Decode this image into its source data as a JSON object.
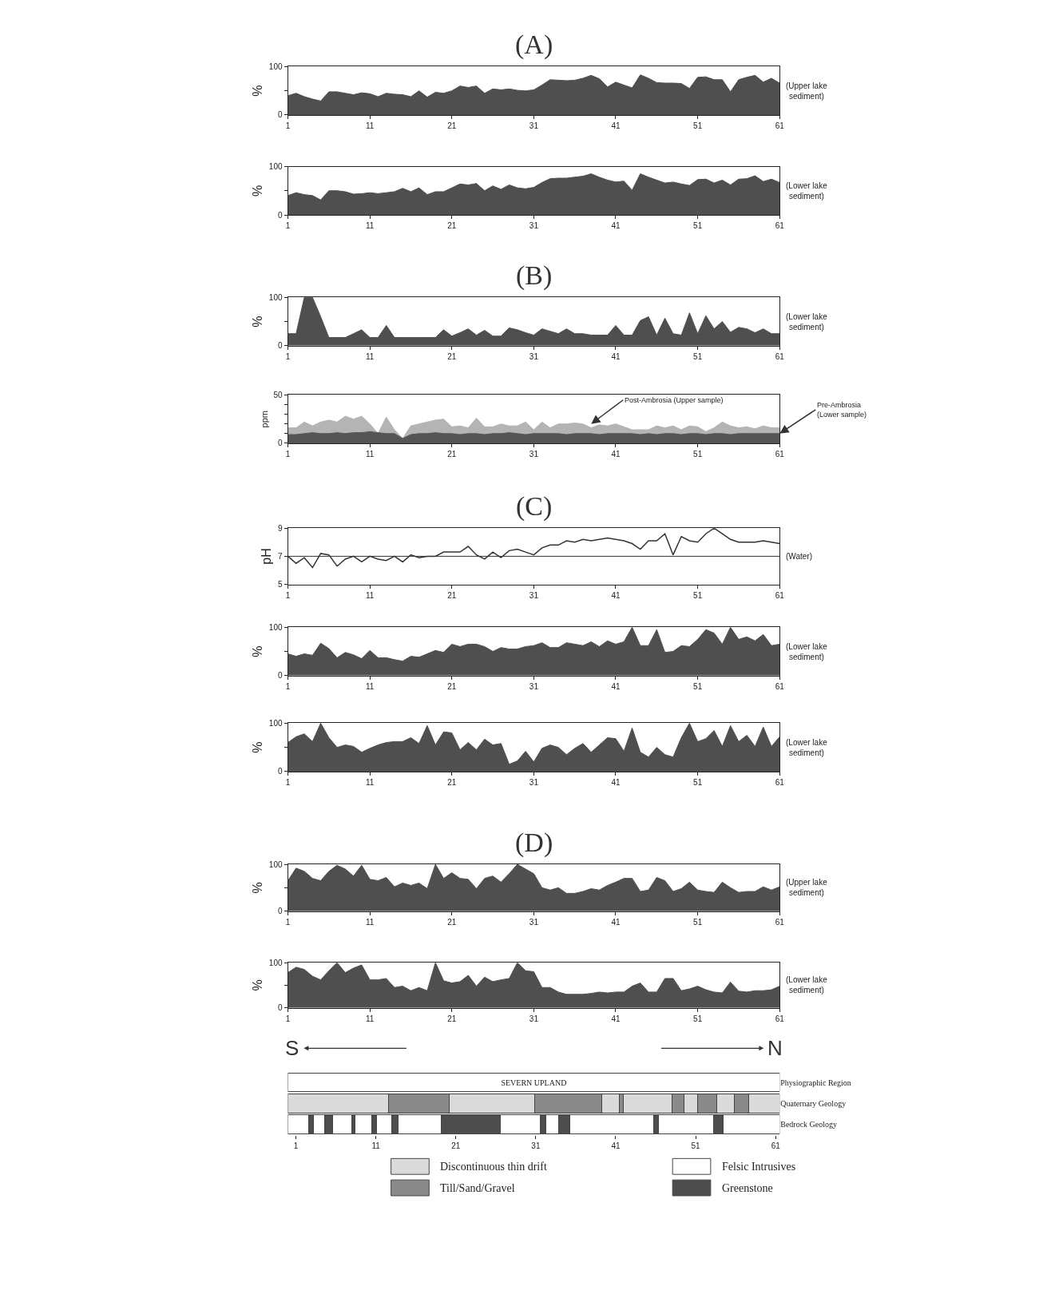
{
  "chart_data": [
    {
      "type": "area",
      "title": "(A)",
      "ylabel": "%",
      "xlim": [
        1,
        61
      ],
      "ylim": [
        0,
        100
      ],
      "xticks": [
        1,
        11,
        21,
        31,
        41,
        51,
        61
      ],
      "yticks": [
        0,
        {
          "value": 50,
          "label": null
        },
        100
      ],
      "grid": false,
      "x": [
        1,
        2,
        3,
        4,
        5,
        6,
        7,
        8,
        9,
        10,
        11,
        12,
        13,
        14,
        15,
        16,
        17,
        18,
        19,
        20,
        21,
        22,
        23,
        24,
        25,
        26,
        27,
        28,
        29,
        30,
        31,
        32,
        33,
        34,
        35,
        36,
        37,
        38,
        39,
        40,
        41,
        42,
        43,
        44,
        45,
        46,
        47,
        48,
        49,
        50,
        51,
        52,
        53,
        54,
        55,
        56,
        57,
        58,
        59,
        60,
        61
      ],
      "series": [
        {
          "name": "(Upper lake sediment)",
          "color": "#4f4f4f",
          "values": [
            40,
            45,
            38,
            33,
            29,
            48,
            48,
            45,
            42,
            46,
            44,
            38,
            45,
            43,
            42,
            38,
            50,
            37,
            47,
            45,
            50,
            60,
            57,
            60,
            45,
            54,
            52,
            54,
            51,
            50,
            52,
            62,
            73,
            72,
            71,
            72,
            76,
            82,
            75,
            58,
            68,
            62,
            56,
            83,
            76,
            67,
            66,
            66,
            65,
            55,
            78,
            79,
            73,
            73,
            48,
            73,
            78,
            82,
            68,
            76,
            66
          ]
        }
      ]
    },
    {
      "type": "area",
      "ylabel": "%",
      "xlim": [
        1,
        61
      ],
      "ylim": [
        0,
        100
      ],
      "xticks": [
        1,
        11,
        21,
        31,
        41,
        51,
        61
      ],
      "yticks": [
        0,
        {
          "value": 50,
          "label": null
        },
        100
      ],
      "grid": false,
      "x": [
        1,
        2,
        3,
        4,
        5,
        6,
        7,
        8,
        9,
        10,
        11,
        12,
        13,
        14,
        15,
        16,
        17,
        18,
        19,
        20,
        21,
        22,
        23,
        24,
        25,
        26,
        27,
        28,
        29,
        30,
        31,
        32,
        33,
        34,
        35,
        36,
        37,
        38,
        39,
        40,
        41,
        42,
        43,
        44,
        45,
        46,
        47,
        48,
        49,
        50,
        51,
        52,
        53,
        54,
        55,
        56,
        57,
        58,
        59,
        60,
        61
      ],
      "series": [
        {
          "name": "(Lower lake sediment)",
          "color": "#4f4f4f",
          "values": [
            40,
            46,
            42,
            40,
            31,
            50,
            50,
            48,
            43,
            44,
            46,
            44,
            46,
            48,
            55,
            48,
            56,
            42,
            48,
            48,
            56,
            64,
            62,
            65,
            50,
            60,
            53,
            62,
            56,
            54,
            57,
            67,
            75,
            76,
            76,
            78,
            80,
            85,
            78,
            72,
            68,
            70,
            51,
            85,
            78,
            72,
            66,
            68,
            64,
            61,
            73,
            74,
            66,
            72,
            62,
            74,
            75,
            81,
            69,
            74,
            67
          ]
        }
      ]
    },
    {
      "type": "area",
      "title": "(B)",
      "ylabel": "%",
      "xlim": [
        1,
        61
      ],
      "ylim": [
        0,
        100
      ],
      "xticks": [
        1,
        11,
        21,
        31,
        41,
        51,
        61
      ],
      "yticks": [
        0,
        {
          "value": 50,
          "label": null
        },
        100
      ],
      "grid": false,
      "x": [
        1,
        2,
        3,
        4,
        5,
        6,
        7,
        8,
        9,
        10,
        11,
        12,
        13,
        14,
        15,
        16,
        17,
        18,
        19,
        20,
        21,
        22,
        23,
        24,
        25,
        26,
        27,
        28,
        29,
        30,
        31,
        32,
        33,
        34,
        35,
        36,
        37,
        38,
        39,
        40,
        41,
        42,
        43,
        44,
        45,
        46,
        47,
        48,
        49,
        50,
        51,
        52,
        53,
        54,
        55,
        56,
        57,
        58,
        59,
        60,
        61
      ],
      "series": [
        {
          "name": "(Lower lake sediment)",
          "color": "#4f4f4f",
          "values": [
            25,
            25,
            100,
            100,
            60,
            17,
            17,
            17,
            25,
            33,
            17,
            17,
            42,
            17,
            17,
            17,
            17,
            17,
            17,
            33,
            20,
            27,
            35,
            22,
            32,
            20,
            20,
            37,
            33,
            27,
            22,
            35,
            30,
            25,
            35,
            25,
            25,
            22,
            22,
            22,
            42,
            22,
            22,
            52,
            60,
            22,
            57,
            25,
            22,
            68,
            25,
            62,
            35,
            50,
            28,
            38,
            35,
            27,
            35,
            25,
            25
          ]
        }
      ]
    },
    {
      "type": "area",
      "ylabel": "ppm",
      "xlim": [
        1,
        61
      ],
      "ylim": [
        0,
        50
      ],
      "xticks": [
        1,
        11,
        21,
        31,
        41,
        51,
        61
      ],
      "yticks": [
        0,
        {
          "value": 10,
          "label": null
        },
        {
          "value": 20,
          "label": null
        },
        {
          "value": 30,
          "label": null
        },
        {
          "value": 40,
          "label": null
        },
        50
      ],
      "grid": false,
      "x": [
        1,
        2,
        3,
        4,
        5,
        6,
        7,
        8,
        9,
        10,
        11,
        12,
        13,
        14,
        15,
        16,
        17,
        18,
        19,
        20,
        21,
        22,
        23,
        24,
        25,
        26,
        27,
        28,
        29,
        30,
        31,
        32,
        33,
        34,
        35,
        36,
        37,
        38,
        39,
        40,
        41,
        42,
        43,
        44,
        45,
        46,
        47,
        48,
        49,
        50,
        51,
        52,
        53,
        54,
        55,
        56,
        57,
        58,
        59,
        60,
        61
      ],
      "series": [
        {
          "color": "#b4b4b4",
          "values": [
            16,
            16,
            22,
            18,
            22,
            24,
            22,
            28,
            25,
            28,
            20,
            10,
            27,
            14,
            5,
            18,
            20,
            22,
            24,
            25,
            17,
            18,
            16,
            26,
            17,
            17,
            20,
            18,
            18,
            22,
            14,
            22,
            16,
            20,
            20,
            21,
            20,
            16,
            19,
            18,
            20,
            17,
            14,
            14,
            14,
            18,
            16,
            18,
            14,
            18,
            17,
            12,
            16,
            22,
            18,
            16,
            17,
            15,
            18,
            16,
            16
          ]
        },
        {
          "color": "#555555",
          "values": [
            9,
            9,
            10,
            11,
            10,
            10,
            11,
            10,
            11,
            11,
            12,
            11,
            10,
            10,
            5,
            9,
            10,
            10,
            11,
            10,
            10,
            9,
            10,
            10,
            9,
            10,
            10,
            11,
            10,
            9,
            10,
            10,
            10,
            10,
            9,
            10,
            10,
            10,
            9,
            10,
            10,
            10,
            10,
            9,
            10,
            9,
            10,
            10,
            9,
            10,
            10,
            9,
            10,
            10,
            9,
            10,
            10,
            10,
            10,
            10,
            10
          ]
        }
      ],
      "annotations": [
        {
          "text": "Post-Ambrosia (Upper sample)",
          "x": 38,
          "y": 20
        },
        {
          "text": "Pre-Ambrosia (Lower sample)",
          "x": 61,
          "y": 10
        }
      ]
    },
    {
      "type": "line",
      "title": "(C)",
      "ylabel": "pH",
      "xlim": [
        1,
        61
      ],
      "ylim": [
        5,
        9
      ],
      "xticks": [
        1,
        11,
        21,
        31,
        41,
        51,
        61
      ],
      "yticks": [
        5,
        7,
        9
      ],
      "grid": false,
      "marker": "none",
      "line_style": "solid",
      "x": [
        1,
        2,
        3,
        4,
        5,
        6,
        7,
        8,
        9,
        10,
        11,
        12,
        13,
        14,
        15,
        16,
        17,
        18,
        19,
        20,
        21,
        22,
        23,
        24,
        25,
        26,
        27,
        28,
        29,
        30,
        31,
        32,
        33,
        34,
        35,
        36,
        37,
        38,
        39,
        40,
        41,
        42,
        43,
        44,
        45,
        46,
        47,
        48,
        49,
        50,
        51,
        52,
        53,
        54,
        55,
        56,
        57,
        58,
        59,
        60,
        61
      ],
      "series": [
        {
          "name": "(Water)",
          "color": "#333333",
          "values": [
            7.0,
            6.5,
            6.9,
            6.2,
            7.2,
            7.1,
            6.3,
            6.8,
            7.0,
            6.6,
            7.0,
            6.8,
            6.7,
            7.0,
            6.6,
            7.1,
            6.9,
            7.0,
            7.0,
            7.3,
            7.3,
            7.3,
            7.7,
            7.1,
            6.8,
            7.3,
            6.9,
            7.4,
            7.5,
            7.3,
            7.1,
            7.6,
            7.8,
            7.8,
            8.1,
            8.0,
            8.2,
            8.1,
            8.2,
            8.3,
            8.2,
            8.1,
            7.9,
            7.5,
            8.1,
            8.1,
            8.6,
            7.1,
            8.4,
            8.1,
            8.0,
            8.6,
            9.0,
            8.6,
            8.2,
            8.0,
            8.0,
            8.0,
            8.1,
            8.0,
            7.9
          ]
        }
      ],
      "ref_lines": [
        {
          "axis": "y",
          "value": 7,
          "color": "#333333"
        }
      ]
    },
    {
      "type": "area",
      "ylabel": "%",
      "xlim": [
        1,
        61
      ],
      "ylim": [
        0,
        100
      ],
      "xticks": [
        1,
        11,
        21,
        31,
        41,
        51,
        61
      ],
      "yticks": [
        0,
        {
          "value": 50,
          "label": null
        },
        100
      ],
      "grid": false,
      "x": [
        1,
        2,
        3,
        4,
        5,
        6,
        7,
        8,
        9,
        10,
        11,
        12,
        13,
        14,
        15,
        16,
        17,
        18,
        19,
        20,
        21,
        22,
        23,
        24,
        25,
        26,
        27,
        28,
        29,
        30,
        31,
        32,
        33,
        34,
        35,
        36,
        37,
        38,
        39,
        40,
        41,
        42,
        43,
        44,
        45,
        46,
        47,
        48,
        49,
        50,
        51,
        52,
        53,
        54,
        55,
        56,
        57,
        58,
        59,
        60,
        61
      ],
      "series": [
        {
          "name": "(Lower lake sediment)",
          "color": "#4f4f4f",
          "values": [
            45,
            40,
            45,
            42,
            67,
            56,
            37,
            48,
            43,
            35,
            52,
            37,
            37,
            33,
            30,
            40,
            38,
            45,
            52,
            48,
            65,
            60,
            65,
            65,
            60,
            50,
            58,
            55,
            55,
            60,
            62,
            68,
            58,
            58,
            68,
            65,
            62,
            70,
            60,
            72,
            65,
            70,
            100,
            62,
            62,
            95,
            48,
            50,
            62,
            60,
            75,
            95,
            88,
            65,
            100,
            75,
            80,
            72,
            85,
            62,
            65
          ]
        }
      ]
    },
    {
      "type": "area",
      "ylabel": "%",
      "xlim": [
        1,
        61
      ],
      "ylim": [
        0,
        100
      ],
      "xticks": [
        1,
        11,
        21,
        31,
        41,
        51,
        61
      ],
      "yticks": [
        0,
        {
          "value": 50,
          "label": null
        },
        100
      ],
      "grid": false,
      "x": [
        1,
        2,
        3,
        4,
        5,
        6,
        7,
        8,
        9,
        10,
        11,
        12,
        13,
        14,
        15,
        16,
        17,
        18,
        19,
        20,
        21,
        22,
        23,
        24,
        25,
        26,
        27,
        28,
        29,
        30,
        31,
        32,
        33,
        34,
        35,
        36,
        37,
        38,
        39,
        40,
        41,
        42,
        43,
        44,
        45,
        46,
        47,
        48,
        49,
        50,
        51,
        52,
        53,
        54,
        55,
        56,
        57,
        58,
        59,
        60,
        61
      ],
      "series": [
        {
          "name": "(Lower lake sediment)",
          "color": "#4f4f4f",
          "values": [
            60,
            72,
            78,
            62,
            100,
            70,
            50,
            55,
            52,
            40,
            48,
            55,
            60,
            62,
            62,
            70,
            58,
            95,
            55,
            82,
            80,
            45,
            60,
            45,
            67,
            55,
            58,
            15,
            22,
            42,
            20,
            48,
            55,
            50,
            35,
            48,
            58,
            40,
            55,
            70,
            68,
            42,
            90,
            40,
            30,
            50,
            35,
            30,
            70,
            100,
            62,
            68,
            85,
            52,
            95,
            62,
            75,
            52,
            92,
            52,
            72
          ]
        }
      ]
    },
    {
      "type": "area",
      "title": "(D)",
      "ylabel": "%",
      "xlim": [
        1,
        61
      ],
      "ylim": [
        0,
        100
      ],
      "xticks": [
        1,
        11,
        21,
        31,
        41,
        51,
        61
      ],
      "yticks": [
        0,
        {
          "value": 50,
          "label": null
        },
        100
      ],
      "grid": false,
      "x": [
        1,
        2,
        3,
        4,
        5,
        6,
        7,
        8,
        9,
        10,
        11,
        12,
        13,
        14,
        15,
        16,
        17,
        18,
        19,
        20,
        21,
        22,
        23,
        24,
        25,
        26,
        27,
        28,
        29,
        30,
        31,
        32,
        33,
        34,
        35,
        36,
        37,
        38,
        39,
        40,
        41,
        42,
        43,
        44,
        45,
        46,
        47,
        48,
        49,
        50,
        51,
        52,
        53,
        54,
        55,
        56,
        57,
        58,
        59,
        60,
        61
      ],
      "series": [
        {
          "name": "(Upper lake sediment)",
          "color": "#4f4f4f",
          "values": [
            65,
            92,
            85,
            70,
            65,
            85,
            98,
            90,
            75,
            98,
            68,
            65,
            72,
            52,
            60,
            55,
            60,
            48,
            100,
            70,
            82,
            70,
            68,
            48,
            70,
            75,
            62,
            80,
            100,
            90,
            80,
            50,
            45,
            50,
            38,
            38,
            42,
            48,
            45,
            55,
            62,
            70,
            70,
            42,
            45,
            72,
            65,
            42,
            48,
            62,
            45,
            42,
            40,
            62,
            50,
            40,
            42,
            42,
            52,
            45,
            52
          ]
        }
      ]
    },
    {
      "type": "area",
      "ylabel": "%",
      "xlim": [
        1,
        61
      ],
      "ylim": [
        0,
        100
      ],
      "xticks": [
        1,
        11,
        21,
        31,
        41,
        51,
        61
      ],
      "yticks": [
        0,
        {
          "value": 50,
          "label": null
        },
        100
      ],
      "grid": false,
      "x": [
        1,
        2,
        3,
        4,
        5,
        6,
        7,
        8,
        9,
        10,
        11,
        12,
        13,
        14,
        15,
        16,
        17,
        18,
        19,
        20,
        21,
        22,
        23,
        24,
        25,
        26,
        27,
        28,
        29,
        30,
        31,
        32,
        33,
        34,
        35,
        36,
        37,
        38,
        39,
        40,
        41,
        42,
        43,
        44,
        45,
        46,
        47,
        48,
        49,
        50,
        51,
        52,
        53,
        54,
        55,
        56,
        57,
        58,
        59,
        60,
        61
      ],
      "series": [
        {
          "name": "(Lower lake sediment)",
          "color": "#4f4f4f",
          "values": [
            78,
            90,
            85,
            70,
            62,
            82,
            100,
            78,
            88,
            95,
            62,
            62,
            65,
            45,
            48,
            38,
            45,
            38,
            100,
            60,
            55,
            58,
            72,
            48,
            68,
            58,
            62,
            65,
            100,
            82,
            80,
            45,
            45,
            35,
            30,
            30,
            30,
            32,
            35,
            33,
            35,
            35,
            48,
            55,
            35,
            35,
            65,
            65,
            38,
            42,
            48,
            40,
            35,
            33,
            57,
            37,
            35,
            38,
            38,
            40,
            48
          ]
        }
      ]
    },
    {
      "type": "bar",
      "orientation": "horizontal",
      "stacked": true,
      "categories": [
        "Physiographic Region",
        "Quaternary Geology",
        "Bedrock Geology"
      ],
      "xlim": [
        0,
        61.5
      ],
      "xticks": [
        1,
        11,
        21,
        31,
        41,
        51,
        61
      ],
      "legend": "bottom",
      "annotations": [
        "S",
        "N"
      ],
      "series": [
        {
          "colors": [
            "#ffffff",
            "#dadada",
            "#ffffff"
          ],
          "values": [
            61.5,
            12.6,
            2.6
          ],
          "value_labels": [
            "SEVERN UPLAND",
            null,
            null
          ]
        },
        {
          "colors": [
            null,
            "#8a8a8a",
            "#4d4d4d"
          ],
          "values": [
            null,
            7.6,
            0.6
          ]
        },
        {
          "colors": [
            null,
            "#dadada",
            "#ffffff"
          ],
          "values": [
            null,
            10.7,
            1.4
          ]
        },
        {
          "colors": [
            null,
            "#8a8a8a",
            "#4d4d4d"
          ],
          "values": [
            null,
            8.4,
            1.0
          ]
        },
        {
          "colors": [
            null,
            "#dadada",
            "#ffffff"
          ],
          "values": [
            null,
            2.1,
            2.4
          ]
        },
        {
          "colors": [
            null,
            "#8a8a8a",
            "#4d4d4d"
          ],
          "values": [
            null,
            0.5,
            0.4
          ]
        },
        {
          "colors": [
            null,
            "#dadada",
            "#ffffff"
          ],
          "values": [
            null,
            6.1,
            2.1
          ]
        },
        {
          "colors": [
            null,
            "#8a8a8a",
            "#4d4d4d"
          ],
          "values": [
            null,
            1.5,
            0.6
          ]
        },
        {
          "colors": [
            null,
            "#dadada",
            "#ffffff"
          ],
          "values": [
            null,
            1.7,
            1.9
          ]
        },
        {
          "colors": [
            null,
            "#8a8a8a",
            "#4d4d4d"
          ],
          "values": [
            null,
            2.4,
            0.8
          ]
        },
        {
          "colors": [
            null,
            "#dadada",
            "#ffffff"
          ],
          "values": [
            null,
            2.2,
            5.4
          ]
        },
        {
          "colors": [
            null,
            "#8a8a8a",
            "#4d4d4d"
          ],
          "values": [
            null,
            1.8,
            7.4
          ]
        },
        {
          "colors": [
            null,
            "#dadada",
            "#ffffff"
          ],
          "values": [
            null,
            3.9,
            5.0
          ]
        },
        {
          "colors": [
            null,
            null,
            "#4d4d4d"
          ],
          "values": [
            null,
            null,
            0.7
          ]
        },
        {
          "colors": [
            null,
            null,
            "#ffffff"
          ],
          "values": [
            null,
            null,
            1.6
          ]
        },
        {
          "colors": [
            null,
            null,
            "#4d4d4d"
          ],
          "values": [
            null,
            null,
            1.4
          ]
        },
        {
          "colors": [
            null,
            null,
            "#ffffff"
          ],
          "values": [
            null,
            null,
            10.4
          ]
        },
        {
          "colors": [
            null,
            null,
            "#4d4d4d"
          ],
          "values": [
            null,
            null,
            0.6
          ]
        },
        {
          "colors": [
            null,
            null,
            "#ffffff"
          ],
          "values": [
            null,
            null,
            6.9
          ]
        },
        {
          "colors": [
            null,
            null,
            "#4d4d4d"
          ],
          "values": [
            null,
            null,
            1.2
          ]
        },
        {
          "colors": [
            null,
            null,
            "#ffffff"
          ],
          "values": [
            null,
            null,
            7.1
          ]
        },
        {
          "name": "Discontinuous thin drift",
          "color": "#dadada",
          "values": [
            null,
            null,
            null
          ]
        },
        {
          "name": "Felsic Intrusives",
          "color": "#ffffff",
          "values": [
            null,
            null,
            null
          ]
        },
        {
          "name": "Till/Sand/Gravel",
          "color": "#8a8a8a",
          "values": [
            null,
            null,
            null
          ]
        },
        {
          "name": "Greenstone",
          "color": "#4d4d4d",
          "values": [
            null,
            null,
            null
          ]
        }
      ]
    }
  ]
}
